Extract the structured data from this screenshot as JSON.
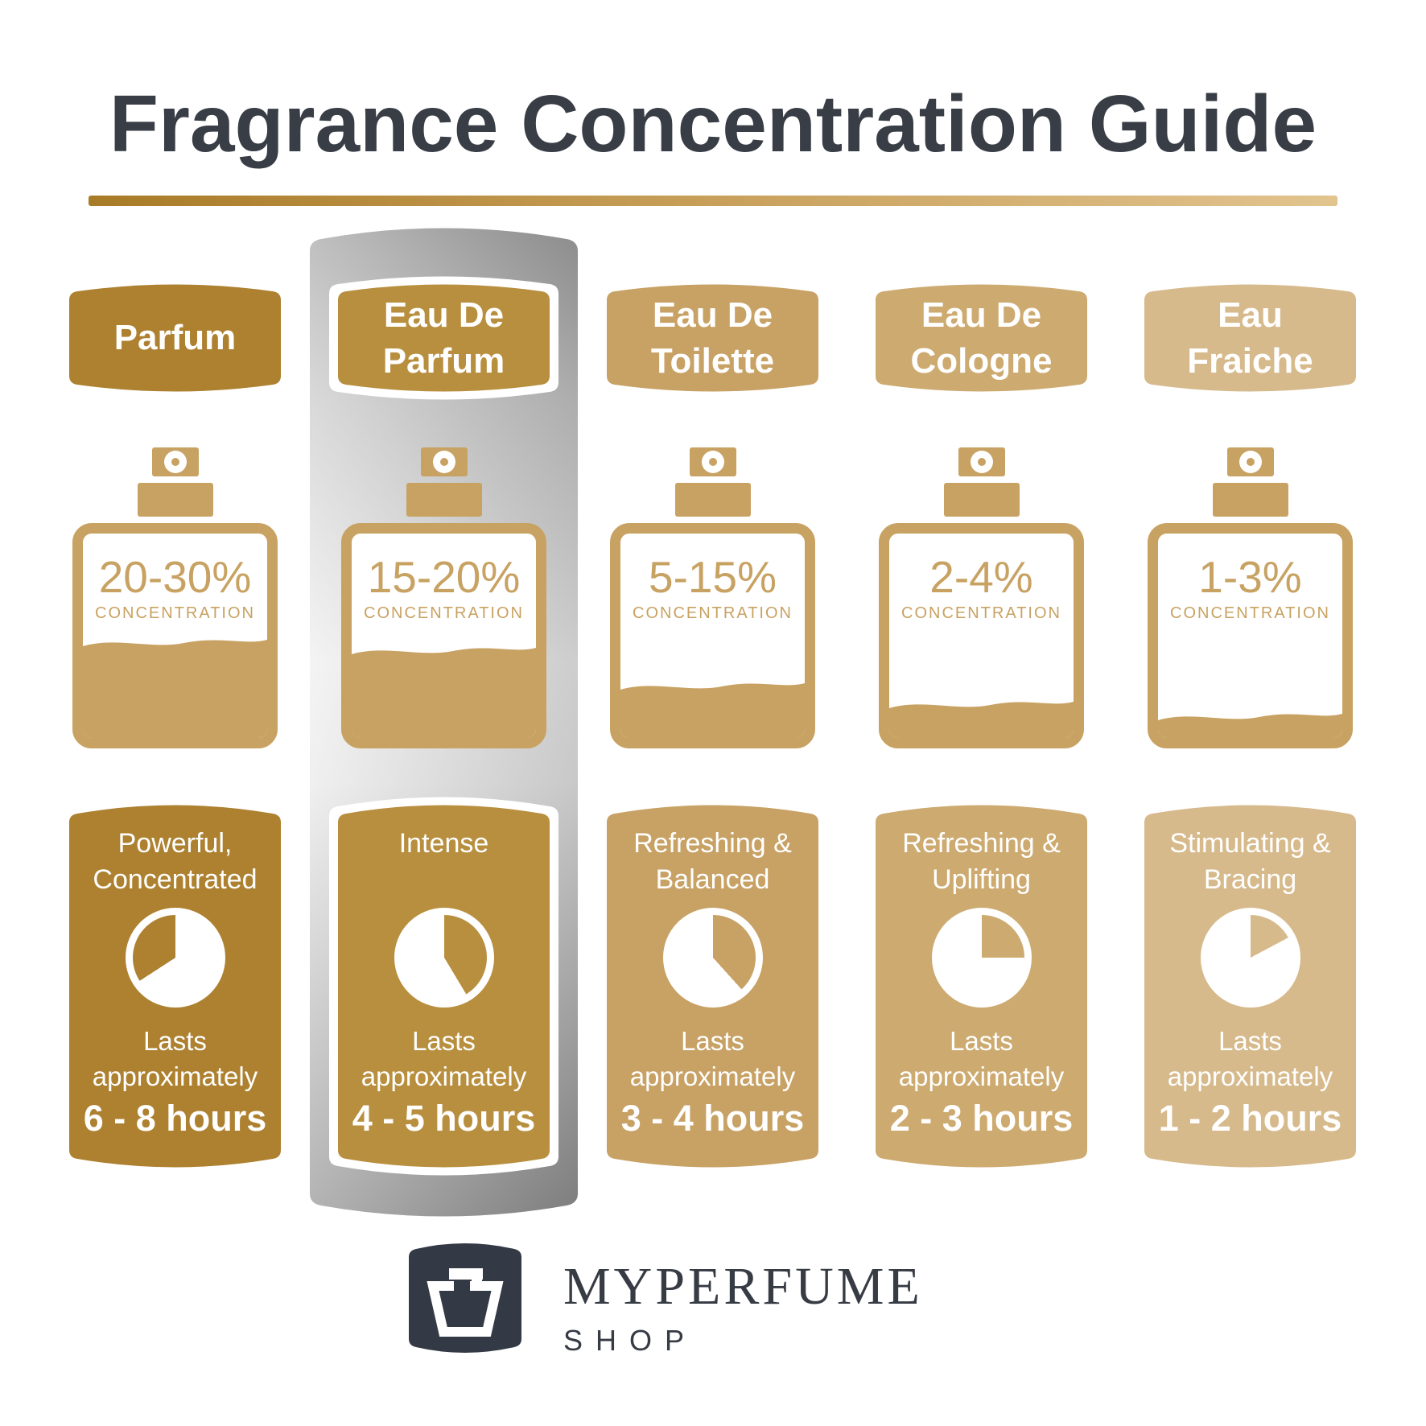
{
  "title": "Fragrance Concentration Guide",
  "colors": {
    "title_ink": "#383d46",
    "bottle_gold": "#c8a262",
    "rule_gradient_from": "#a87b27",
    "rule_gradient_to": "#e2c48f",
    "highlight_silver": "#bdbdbd",
    "logo_badge": "#343a45"
  },
  "columns": [
    {
      "id": "parfum",
      "highlighted": false,
      "accent": "#ad8130",
      "name_line1": "Parfum",
      "name_line2": "",
      "concentration": "20-30%",
      "concentration_label": "CONCENTRATION",
      "fill_percent": 42,
      "desc_line1": "Powerful,",
      "desc_line2": "Concentrated",
      "lasts_line1": "Lasts",
      "lasts_line2": "approximately",
      "duration": "6 - 8 hours",
      "duration_hours_min": 6,
      "duration_hours_max": 8,
      "pie": {
        "gold_from": 237,
        "gold_to": 360
      }
    },
    {
      "id": "eau-de-parfum",
      "highlighted": true,
      "accent": "#b88f3e",
      "name_line1": "Eau De",
      "name_line2": "Parfum",
      "concentration": "15-20%",
      "concentration_label": "CONCENTRATION",
      "fill_percent": 38,
      "desc_line1": "Intense",
      "desc_line2": "",
      "lasts_line1": "Lasts",
      "lasts_line2": "approximately",
      "duration": "4 - 5 hours",
      "duration_hours_min": 4,
      "duration_hours_max": 5,
      "pie": {
        "gold_from": 0,
        "gold_to": 149
      }
    },
    {
      "id": "eau-de-toilette",
      "highlighted": false,
      "accent": "#c8a164",
      "name_line1": "Eau De",
      "name_line2": "Toilette",
      "concentration": "5-15%",
      "concentration_label": "CONCENTRATION",
      "fill_percent": 21,
      "desc_line1": "Refreshing &",
      "desc_line2": "Balanced",
      "lasts_line1": "Lasts",
      "lasts_line2": "approximately",
      "duration": "3 - 4 hours",
      "duration_hours_min": 3,
      "duration_hours_max": 4,
      "pie": {
        "gold_from": 0,
        "gold_to": 138
      }
    },
    {
      "id": "eau-de-cologne",
      "highlighted": false,
      "accent": "#cdaa70",
      "name_line1": "Eau De",
      "name_line2": "Cologne",
      "concentration": "2-4%",
      "concentration_label": "CONCENTRATION",
      "fill_percent": 12,
      "desc_line1": "Refreshing &",
      "desc_line2": "Uplifting",
      "lasts_line1": "Lasts",
      "lasts_line2": "approximately",
      "duration": "2 - 3 hours",
      "duration_hours_min": 2,
      "duration_hours_max": 3,
      "pie": {
        "gold_from": 0,
        "gold_to": 90
      }
    },
    {
      "id": "eau-fraiche",
      "highlighted": false,
      "accent": "#d7ba8c",
      "name_line1": "Eau",
      "name_line2": "Fraiche",
      "concentration": "1-3%",
      "concentration_label": "CONCENTRATION",
      "fill_percent": 6,
      "desc_line1": "Stimulating &",
      "desc_line2": "Bracing",
      "lasts_line1": "Lasts",
      "lasts_line2": "approximately",
      "duration": "1 - 2 hours",
      "duration_hours_min": 1,
      "duration_hours_max": 2,
      "pie": {
        "gold_from": 0,
        "gold_to": 62
      }
    }
  ],
  "brand": {
    "name": "MYPERFUME",
    "sub": "SHOP"
  }
}
